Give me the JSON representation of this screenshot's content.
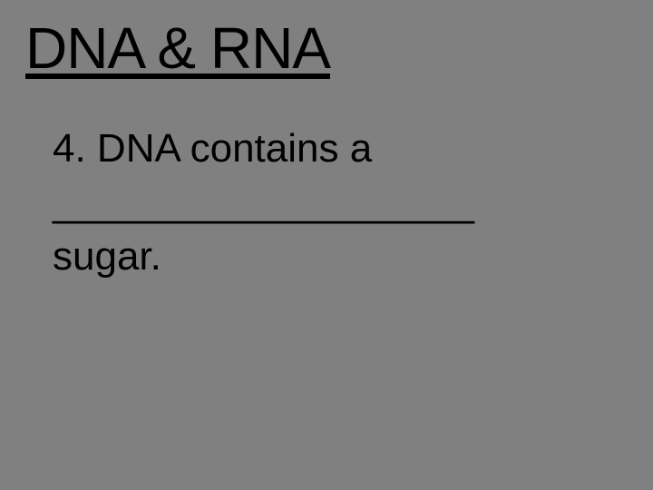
{
  "slide": {
    "background_color": "#808080",
    "text_color": "#000000",
    "title": {
      "text": "DNA & RNA",
      "font_size_pt": 48,
      "underline": true
    },
    "body": {
      "font_size_pt": 33,
      "line1": "4. DNA contains a",
      "line2": "___________________",
      "line3": "sugar."
    }
  }
}
